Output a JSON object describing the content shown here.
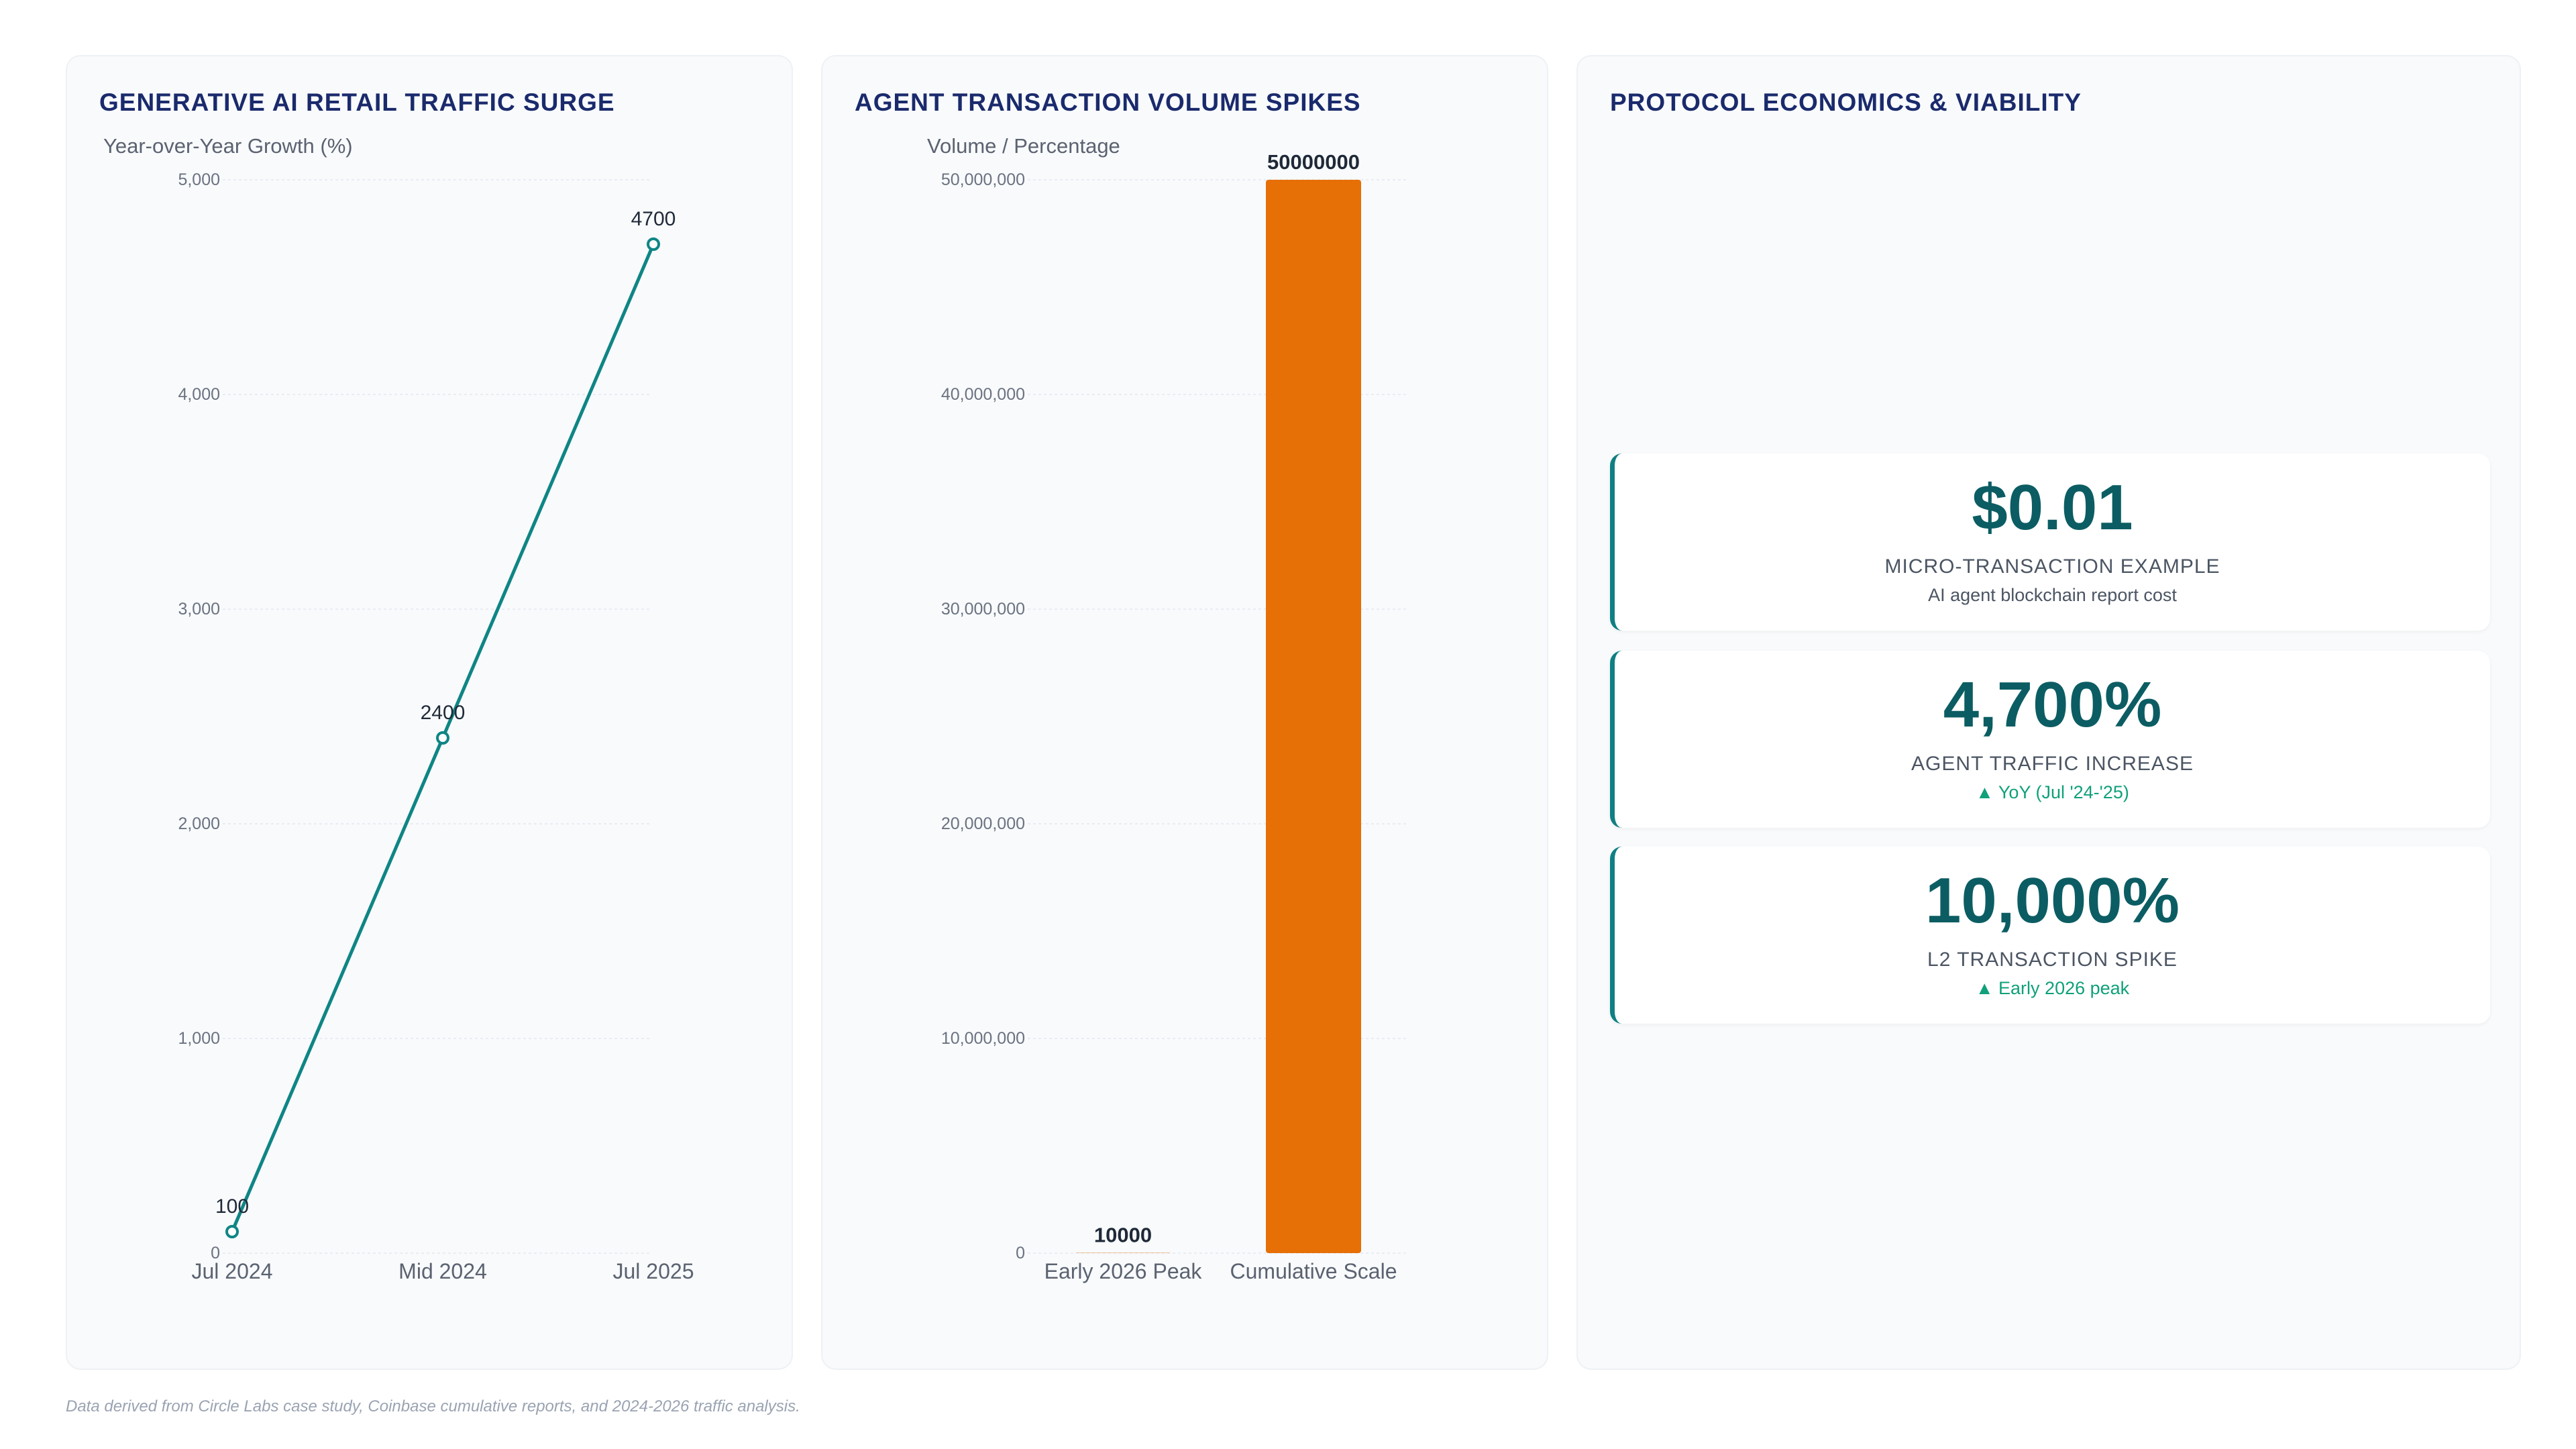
{
  "panels": {
    "traffic": {
      "title": "GENERATIVE AI RETAIL TRAFFIC SURGE"
    },
    "volume": {
      "title": "AGENT TRANSACTION VOLUME SPIKES"
    },
    "economics": {
      "title": "PROTOCOL ECONOMICS & VIABILITY"
    }
  },
  "chart_data": [
    {
      "type": "line",
      "title": "GENERATIVE AI RETAIL TRAFFIC SURGE",
      "ylabel": "Year-over-Year Growth (%)",
      "categories": [
        "Jul 2024",
        "Mid 2024",
        "Jul 2025"
      ],
      "series": [
        {
          "values": [
            100,
            2400,
            4700
          ]
        }
      ],
      "data_labels": [
        "100",
        "2400",
        "4700"
      ],
      "y_ticks": [
        "0",
        "1,000",
        "2,000",
        "3,000",
        "4,000",
        "5,000"
      ],
      "ylim": [
        0,
        5000
      ],
      "color": "#0f8585",
      "grid": true
    },
    {
      "type": "bar",
      "title": "AGENT TRANSACTION VOLUME SPIKES",
      "ylabel": "Volume / Percentage",
      "categories": [
        "Early 2026 Peak",
        "Cumulative Scale"
      ],
      "values": [
        10000,
        50000000
      ],
      "data_labels": [
        "10000",
        "50000000"
      ],
      "y_ticks": [
        "0",
        "10,000,000",
        "20,000,000",
        "30,000,000",
        "40,000,000",
        "50,000,000"
      ],
      "ylim": [
        0,
        50000000
      ],
      "color": "#e66f06",
      "grid": true
    }
  ],
  "kpis": [
    {
      "value": "$0.01",
      "label": "MICRO-TRANSACTION EXAMPLE",
      "sub": "AI agent blockchain report cost",
      "trend": "none"
    },
    {
      "value": "4,700%",
      "label": "AGENT TRAFFIC INCREASE",
      "sub": "▲ YoY (Jul '24-'25)",
      "trend": "up"
    },
    {
      "value": "10,000%",
      "label": "L2 TRANSACTION SPIKE",
      "sub": "▲ Early 2026 peak",
      "trend": "up"
    }
  ],
  "footnote": "Data derived from Circle Labs case study, Coinbase cumulative reports, and 2024-2026 traffic analysis.",
  "colors": {
    "accent_teal": "#0f8585",
    "accent_orange": "#e66f06",
    "title_navy": "#1a2a6c",
    "trend_up": "#10a07a"
  }
}
